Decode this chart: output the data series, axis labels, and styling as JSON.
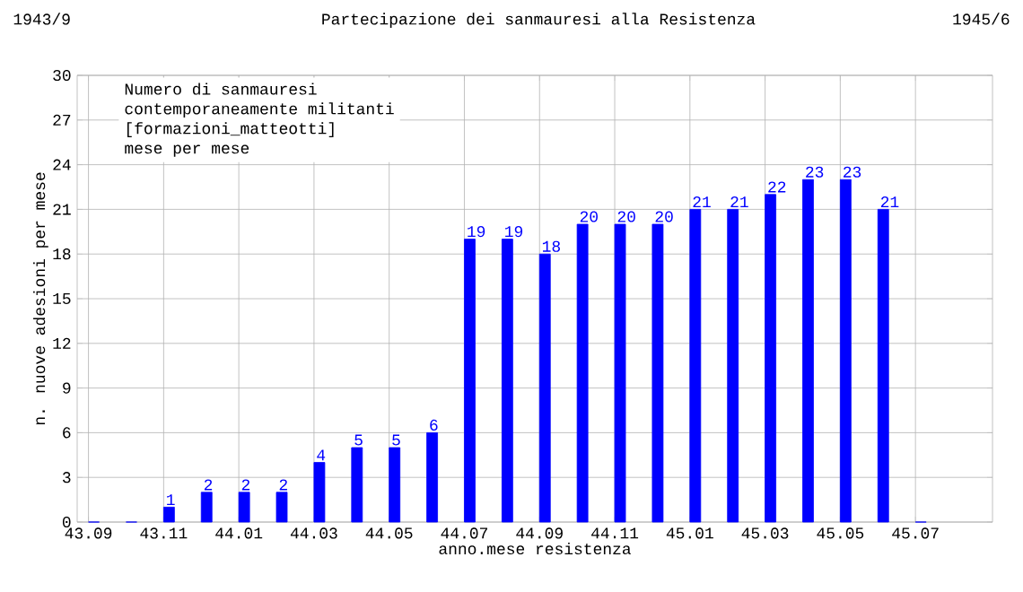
{
  "chart_data": {
    "type": "bar",
    "title": "Partecipazione dei sanmauresi alla Resistenza",
    "xlabel": "anno.mese resistenza",
    "ylabel": "n. nuove adesioni per mese",
    "annotations": [
      "1943/9",
      "1945/6",
      "Numero di sanmauresi",
      "contemporaneamente militanti",
      "[formazioni_matteotti]",
      "mese per mese"
    ],
    "categories": [
      "43.09",
      null,
      "43.11",
      null,
      "44.01",
      null,
      "44.03",
      null,
      "44.05",
      null,
      "44.07",
      null,
      "44.09",
      null,
      "44.11",
      null,
      "45.01",
      null,
      "45.03",
      null,
      "45.05",
      null,
      "45.07"
    ],
    "values": [
      0,
      0,
      1,
      2,
      2,
      2,
      4,
      5,
      5,
      6,
      19,
      19,
      18,
      20,
      20,
      20,
      21,
      21,
      22,
      23,
      23,
      21,
      0
    ],
    "value_labels": [
      null,
      null,
      "1",
      "2",
      "2",
      "2",
      "4",
      "5",
      "5",
      "6",
      "19",
      "19",
      "18",
      "20",
      "20",
      "20",
      "21",
      "21",
      "22",
      "23",
      "23",
      "21",
      null
    ],
    "color": "#0000ff",
    "ylim": [
      0,
      30
    ],
    "yticks": [
      0,
      3,
      6,
      9,
      12,
      15,
      18,
      21,
      24,
      27,
      30
    ],
    "grid": true
  }
}
